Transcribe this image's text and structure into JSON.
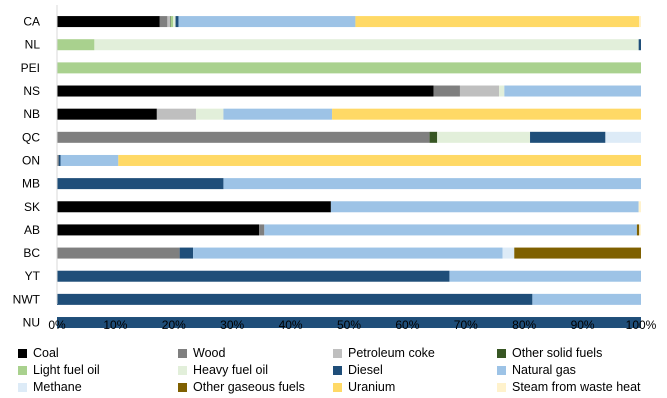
{
  "chart_data": {
    "type": "bar",
    "orientation": "horizontal",
    "stacked": true,
    "percent": true,
    "title": "",
    "xlabel": "",
    "ylabel": "",
    "xlim": [
      0,
      100
    ],
    "x_ticks": [
      "0%",
      "10%",
      "20%",
      "30%",
      "40%",
      "50%",
      "60%",
      "70%",
      "80%",
      "90%",
      "100%"
    ],
    "categories": [
      "CA",
      "NL",
      "PEI",
      "NS",
      "NB",
      "QC",
      "ON",
      "MB",
      "SK",
      "AB",
      "BC",
      "YT",
      "NWT",
      "NU"
    ],
    "legend_position": "bottom",
    "grid": false,
    "series": [
      {
        "name": "Coal",
        "color": "#000000",
        "values": [
          17.6,
          0,
          0,
          64.5,
          17.1,
          0,
          0,
          0,
          46.9,
          34.6,
          0,
          0,
          0,
          0
        ]
      },
      {
        "name": "Wood",
        "color": "#7f7f7f",
        "values": [
          1.3,
          0,
          0,
          4.5,
          0,
          63.8,
          0.3,
          0,
          0,
          0.9,
          21,
          0,
          0,
          0
        ]
      },
      {
        "name": "Petroleum coke",
        "color": "#bfbfbf",
        "values": [
          0.5,
          0,
          0,
          6.7,
          6.7,
          0,
          0,
          0,
          0,
          0,
          0,
          0,
          0,
          0
        ]
      },
      {
        "name": "Other solid fuels",
        "color": "#375623",
        "values": [
          0.1,
          0,
          0,
          0,
          0,
          1.3,
          0,
          0,
          0,
          0,
          0,
          0,
          0,
          0
        ]
      },
      {
        "name": "Light fuel oil",
        "color": "#a9d18e",
        "values": [
          0.4,
          6.4,
          100,
          0,
          0,
          0,
          0,
          0,
          0,
          0,
          0,
          0,
          0,
          0
        ]
      },
      {
        "name": "Heavy fuel oil",
        "color": "#e2efda",
        "values": [
          0.4,
          93.2,
          0,
          0.9,
          4.7,
          15.9,
          0,
          0,
          0,
          0,
          0,
          0,
          0,
          0
        ]
      },
      {
        "name": "Diesel",
        "color": "#1f4e79",
        "values": [
          0.5,
          0.4,
          0,
          0,
          0,
          12.9,
          0.3,
          28.5,
          0,
          0,
          2.3,
          67.2,
          81.4,
          100
        ]
      },
      {
        "name": "Natural gas",
        "color": "#9dc3e6",
        "values": [
          30.3,
          0,
          0,
          23.4,
          18.6,
          0,
          9.9,
          71.5,
          52.7,
          63.8,
          53,
          32.8,
          18.6,
          0
        ]
      },
      {
        "name": "Methane",
        "color": "#ddebf7",
        "values": [
          0,
          0,
          0,
          0,
          0,
          6.1,
          0,
          0,
          0,
          0,
          2,
          0,
          0,
          0
        ]
      },
      {
        "name": "Other gaseous fuels",
        "color": "#7f6000",
        "values": [
          0,
          0,
          0,
          0,
          0,
          0,
          0,
          0,
          0,
          0.4,
          21.7,
          0,
          0,
          0
        ]
      },
      {
        "name": "Uranium",
        "color": "#ffd966",
        "values": [
          48.6,
          0,
          0,
          0,
          52.9,
          0,
          89.5,
          0,
          0,
          0,
          0,
          0,
          0,
          0
        ]
      },
      {
        "name": "Steam from waste heat",
        "color": "#fff2cc",
        "values": [
          0.3,
          0,
          0,
          0,
          0,
          0,
          0,
          0,
          0.4,
          0.3,
          0,
          0,
          0,
          0
        ]
      }
    ]
  }
}
